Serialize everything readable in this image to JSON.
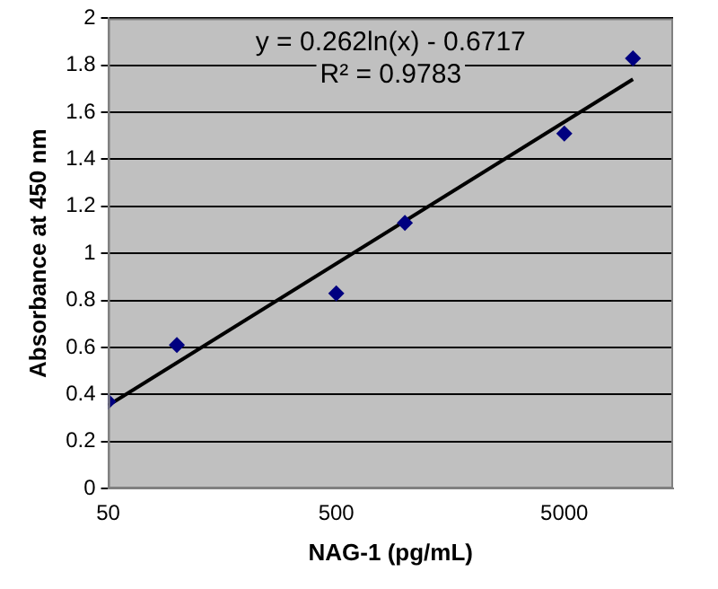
{
  "chart_data": {
    "type": "scatter",
    "xlabel": "NAG-1 (pg/mL)",
    "ylabel": "Absorbance at 450 nm",
    "log": "x",
    "xlim": [
      50,
      15000
    ],
    "xticks": [
      50,
      500,
      5000
    ],
    "ylim": [
      0,
      2
    ],
    "yticks": [
      0,
      0.2,
      0.4,
      0.6,
      0.8,
      1,
      1.2,
      1.4,
      1.6,
      1.8,
      2
    ],
    "grid": "y",
    "legend": false,
    "annotations": [
      "y = 0.262ln(x) - 0.6717",
      "R² = 0.9783"
    ],
    "series": [
      {
        "color": "#000080",
        "marker": "diamond",
        "x": [
          50,
          100,
          500,
          1000,
          5000,
          10000
        ],
        "values": [
          0.37,
          0.61,
          0.83,
          1.13,
          1.51,
          1.83
        ]
      },
      {
        "type": "line",
        "color": "#000000",
        "marker": "none",
        "x": [
          50,
          10000
        ],
        "values": [
          0.353,
          1.741
        ]
      }
    ]
  }
}
